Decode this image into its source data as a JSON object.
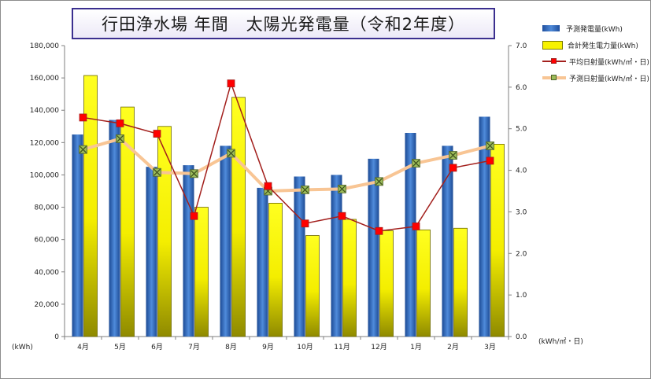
{
  "chart_data": {
    "type": "bar",
    "title": "行田浄水場 年間　太陽光発電量（令和2年度）",
    "categories": [
      "4月",
      "5月",
      "6月",
      "7月",
      "8月",
      "9月",
      "10月",
      "11月",
      "12月",
      "1月",
      "2月",
      "3月"
    ],
    "series": [
      {
        "name": "予測発電量(kWh)",
        "kind": "bar",
        "axis": "left",
        "values": [
          125000,
          134000,
          105000,
          106000,
          118000,
          92000,
          99000,
          100000,
          110000,
          126000,
          118000,
          136000
        ]
      },
      {
        "name": "合計発生電力量(kWh)",
        "kind": "bar",
        "axis": "left",
        "values": [
          161500,
          142000,
          130000,
          80000,
          148000,
          82500,
          62500,
          72500,
          65500,
          66000,
          67000,
          119000
        ]
      },
      {
        "name": "平均日射量(kWh/㎡・日)",
        "kind": "line",
        "axis": "right",
        "values": [
          5.27,
          5.13,
          4.88,
          2.9,
          6.09,
          3.62,
          2.72,
          2.9,
          2.54,
          2.65,
          4.06,
          4.23
        ]
      },
      {
        "name": "予測日射量(kWh/㎡・日)",
        "kind": "line",
        "axis": "right",
        "values": [
          4.5,
          4.76,
          3.95,
          3.92,
          4.41,
          3.5,
          3.53,
          3.55,
          3.73,
          4.17,
          4.36,
          4.59
        ]
      }
    ],
    "y_left": {
      "unit": "(kWh)",
      "range": [
        0,
        180000
      ],
      "ticks": [
        "0",
        "20,000",
        "40,000",
        "60,000",
        "80,000",
        "100,000",
        "120,000",
        "140,000",
        "160,000",
        "180,000"
      ]
    },
    "y_right": {
      "unit": "(kWh/㎡・日)",
      "range": [
        0,
        7
      ],
      "ticks": [
        "0.0",
        "1.0",
        "2.0",
        "3.0",
        "4.0",
        "5.0",
        "6.0",
        "7.0"
      ]
    },
    "legend_position": "right",
    "colors": {
      "predicted_bar": "#2f64b5",
      "actual_bar": "#f7f200",
      "actual_line": "#a3201d",
      "actual_marker": "#ff0000",
      "predicted_line": "#f8c594",
      "predicted_marker": "#9bbb59"
    }
  }
}
